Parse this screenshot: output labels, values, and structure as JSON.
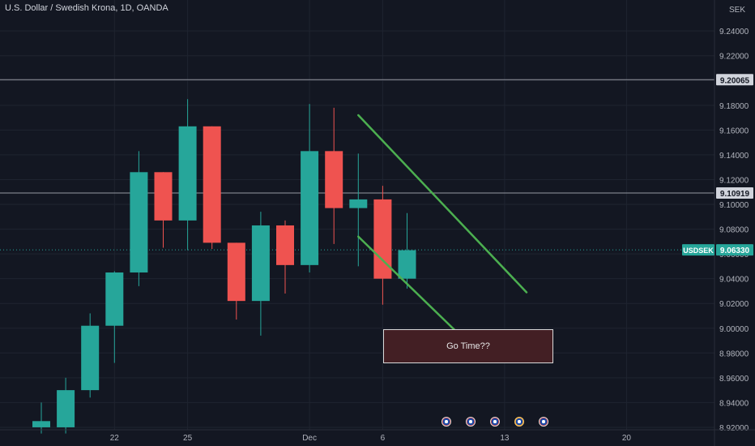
{
  "title": "U.S. Dollar / Swedish Krona, 1D, OANDA",
  "currency": "SEK",
  "annotation": "Go Time??",
  "colors": {
    "background": "#131722",
    "up": "#26a69a",
    "down": "#ef5350",
    "trendline": "#4caf50",
    "text": "#b2b5be"
  },
  "chart_data": {
    "type": "candlestick",
    "ylim": [
      8.918,
      9.265
    ],
    "y_ticks": [
      "9.24000",
      "9.22000",
      "9.20000",
      "9.18000",
      "9.16000",
      "9.14000",
      "9.12000",
      "9.10000",
      "9.08000",
      "9.06000",
      "9.04000",
      "9.02000",
      "9.00000",
      "8.98000",
      "8.96000",
      "8.94000",
      "8.92000"
    ],
    "x_ticks": [
      {
        "label": "22",
        "index": 3
      },
      {
        "label": "25",
        "index": 6
      },
      {
        "label": "Dec",
        "index": 11
      },
      {
        "label": "6",
        "index": 14
      },
      {
        "label": "13",
        "index": 19
      },
      {
        "label": "20",
        "index": 24
      }
    ],
    "candles": [
      {
        "o": 8.92,
        "h": 8.94,
        "l": 8.915,
        "c": 8.925
      },
      {
        "o": 8.92,
        "h": 8.96,
        "l": 8.915,
        "c": 8.95
      },
      {
        "o": 8.95,
        "h": 9.012,
        "l": 8.944,
        "c": 9.002
      },
      {
        "o": 9.002,
        "h": 9.046,
        "l": 8.972,
        "c": 9.045
      },
      {
        "o": 9.045,
        "h": 9.143,
        "l": 9.034,
        "c": 9.126
      },
      {
        "o": 9.126,
        "h": 9.126,
        "l": 9.065,
        "c": 9.087
      },
      {
        "o": 9.087,
        "h": 9.185,
        "l": 9.063,
        "c": 9.163
      },
      {
        "o": 9.163,
        "h": 9.163,
        "l": 9.064,
        "c": 9.069
      },
      {
        "o": 9.069,
        "h": 9.069,
        "l": 9.007,
        "c": 9.022
      },
      {
        "o": 9.022,
        "h": 9.094,
        "l": 8.994,
        "c": 9.083
      },
      {
        "o": 9.083,
        "h": 9.087,
        "l": 9.028,
        "c": 9.051
      },
      {
        "o": 9.051,
        "h": 9.181,
        "l": 9.045,
        "c": 9.143
      },
      {
        "o": 9.143,
        "h": 9.178,
        "l": 9.068,
        "c": 9.097
      },
      {
        "o": 9.097,
        "h": 9.141,
        "l": 9.05,
        "c": 9.104
      },
      {
        "o": 9.104,
        "h": 9.115,
        "l": 9.019,
        "c": 9.04
      },
      {
        "o": 9.04,
        "h": 9.093,
        "l": 9.032,
        "c": 9.063
      }
    ],
    "h_lines": [
      {
        "value": 9.20065,
        "label": "9.20065"
      },
      {
        "value": 9.10919,
        "label": "9.10919"
      }
    ],
    "current": {
      "symbol": "USDSEK",
      "value": 9.0633,
      "label": "9.06330"
    },
    "trendlines": [
      {
        "x1": 13.0,
        "y1": 9.172,
        "x2": 19.9,
        "y2": 9.029
      },
      {
        "x1": 13.0,
        "y1": 9.074,
        "x2": 17.4,
        "y2": 8.99
      }
    ],
    "event_flags": [
      {
        "index": 16.6,
        "country": "us"
      },
      {
        "index": 17.6,
        "country": "us"
      },
      {
        "index": 18.6,
        "country": "us"
      },
      {
        "index": 19.6,
        "country": "us-orange"
      },
      {
        "index": 20.6,
        "country": "us"
      }
    ]
  }
}
